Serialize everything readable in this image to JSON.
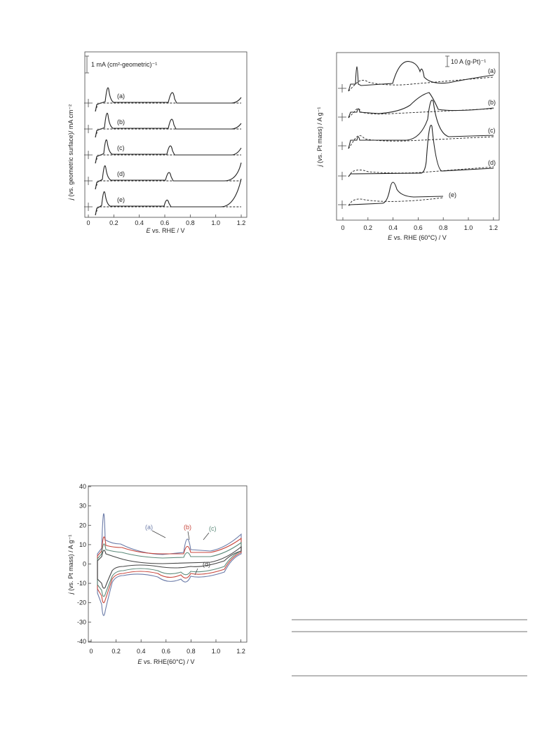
{
  "figures": [
    {
      "scale_bar": "1 mA (cm²-geometric)⁻¹",
      "y_label": {
        "symbol": "j",
        "text": " (vs. geometric surface)/ mA cm⁻²"
      },
      "x_label": {
        "symbol": "E",
        "text": " vs. RHE / V"
      },
      "xticks": [
        0,
        0.2,
        0.4,
        0.6,
        0.8,
        {
          "value": 1,
          "label": "1.0"
        },
        1.2
      ],
      "curve_labels": [
        "(a)",
        "(b)",
        "(c)",
        "(d)",
        "(e)"
      ]
    },
    {
      "scale_bar": "10 A (g-Pt)⁻¹",
      "y_label": {
        "symbol": "j",
        "text": " (vs. Pt mass) / A g⁻¹"
      },
      "x_label": {
        "symbol": "E",
        "text": " vs. RHE (60°C) / V"
      },
      "xticks": [
        0,
        0.2,
        0.4,
        0.6,
        0.8,
        {
          "value": 1,
          "label": "1.0"
        },
        1.2
      ],
      "curve_labels": [
        "(a)",
        "(b)",
        "(c)",
        "(d)",
        "(e)"
      ]
    },
    {
      "y_label": {
        "symbol": "j",
        "text": " (vs. Pt mass) / A g⁻¹"
      },
      "x_label": {
        "symbol": "E",
        "text": " vs. RHE(60°C) / V"
      },
      "xticks": [
        0,
        0.2,
        0.4,
        0.6,
        0.8,
        {
          "value": 1,
          "label": "1.0"
        },
        1.2
      ],
      "yticks": [
        40,
        30,
        20,
        10,
        0,
        -10,
        -20,
        -30,
        -40
      ],
      "curve_labels": [
        "(a)",
        "(b)",
        "(c)",
        "(d)"
      ]
    }
  ]
}
